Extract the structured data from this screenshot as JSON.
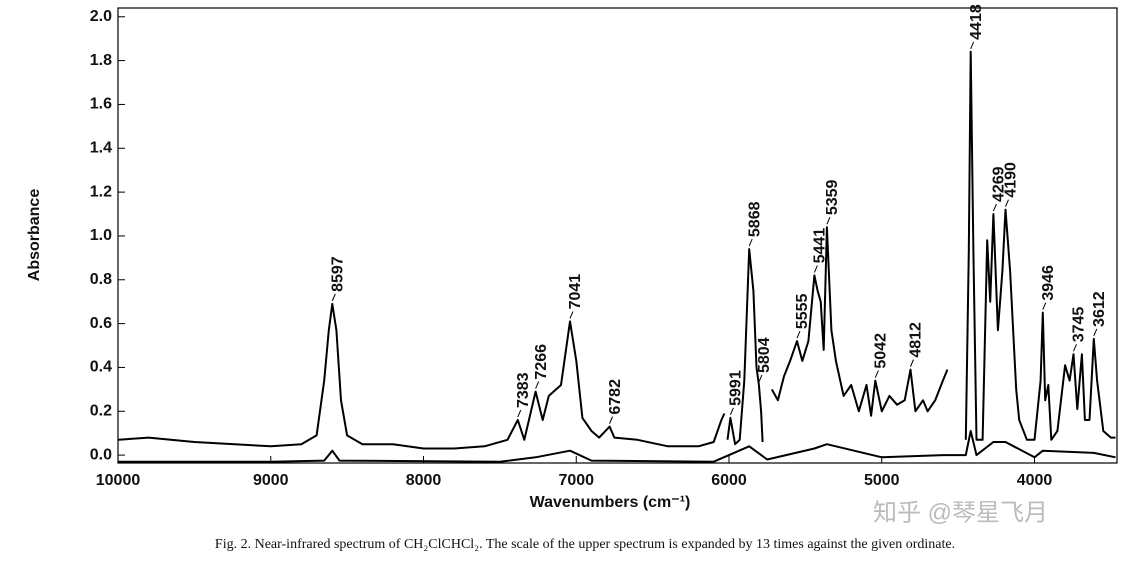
{
  "chart_data": {
    "type": "line",
    "xlabel": "Wavenumbers (cm⁻¹)",
    "ylabel": "Absorbance",
    "caption": "Fig. 2.   Near-infrared spectrum of CH₂ClCHCl₂. The scale of the upper spectrum is expanded by 13 times against the given ordinate.",
    "watermark": "知乎 @琴星飞月",
    "xlim": [
      10000,
      3460
    ],
    "ylim": [
      -0.036,
      2.04
    ],
    "xticks": [
      10000,
      9000,
      8000,
      7000,
      6000,
      5000,
      4000
    ],
    "yticks": [
      {
        "value": 0,
        "label": "0.0"
      },
      {
        "value": 0.2,
        "label": "0.2"
      },
      {
        "value": 0.4,
        "label": "0.4"
      },
      {
        "value": 0.6,
        "label": "0.6"
      },
      {
        "value": 0.8,
        "label": "0.8"
      },
      {
        "value": 1,
        "label": "1.0"
      },
      {
        "value": 1.2,
        "label": "1.2"
      },
      {
        "value": 1.4,
        "label": "1.4"
      },
      {
        "value": 1.6,
        "label": "1.6"
      },
      {
        "value": 1.8,
        "label": "1.8"
      },
      {
        "value": 2,
        "label": "2.0"
      }
    ],
    "series": [
      {
        "color": "#000000",
        "x": [
          10000,
          9800,
          9500,
          9000,
          8800,
          8700,
          8650,
          8620,
          8597,
          8570,
          8540,
          8500,
          8400,
          8200,
          8000,
          7800,
          7600,
          7450,
          7383,
          7340,
          7266,
          7220,
          7180,
          7100,
          7041,
          7000,
          6960,
          6900,
          6850,
          6782,
          6750,
          6600,
          6400,
          6200,
          6100,
          6050,
          6030,
          6020,
          6010,
          5991,
          5960,
          5930,
          5900,
          5868,
          5840,
          5820,
          5804,
          5790,
          5780,
          5750,
          5720,
          5680,
          5640,
          5600,
          5555,
          5520,
          5480,
          5441,
          5420,
          5400,
          5380,
          5359,
          5330,
          5300,
          5250,
          5200,
          5150,
          5100,
          5070,
          5042,
          5000,
          4950,
          4900,
          4850,
          4812,
          4780,
          4730,
          4700,
          4650,
          4600,
          4570,
          4500,
          4450,
          4430,
          4418,
          4400,
          4380,
          4340,
          4310,
          4290,
          4269,
          4240,
          4210,
          4190,
          4160,
          4120,
          4100,
          4050,
          4000,
          3960,
          3946,
          3930,
          3910,
          3890,
          3850,
          3800,
          3770,
          3745,
          3720,
          3690,
          3670,
          3640,
          3612,
          3590,
          3550,
          3500,
          3470
        ],
        "values": [
          0.07,
          0.08,
          0.06,
          0.04,
          0.05,
          0.09,
          0.34,
          0.57,
          0.69,
          0.57,
          0.25,
          0.09,
          0.05,
          0.05,
          0.03,
          0.03,
          0.04,
          0.07,
          0.16,
          0.07,
          0.29,
          0.16,
          0.27,
          0.32,
          0.61,
          0.43,
          0.17,
          0.11,
          0.08,
          0.13,
          0.08,
          0.07,
          0.04,
          0.04,
          0.06,
          0.16,
          0.19,
          null,
          0.07,
          0.17,
          0.05,
          0.07,
          0.34,
          0.94,
          0.75,
          0.4,
          0.32,
          0.2,
          0.06,
          null,
          0.3,
          0.25,
          0.36,
          0.43,
          0.52,
          0.43,
          0.52,
          0.82,
          0.75,
          0.7,
          0.48,
          1.04,
          0.57,
          0.43,
          0.27,
          0.32,
          0.2,
          0.32,
          0.18,
          0.34,
          0.2,
          0.27,
          0.23,
          0.25,
          0.39,
          0.2,
          0.25,
          0.2,
          0.25,
          0.34,
          0.39,
          null,
          0.07,
          0.93,
          1.84,
          0.93,
          0.07,
          0.07,
          0.98,
          0.7,
          1.1,
          0.57,
          0.84,
          1.12,
          0.84,
          0.3,
          0.16,
          0.07,
          0.07,
          0.34,
          0.65,
          0.25,
          0.32,
          0.07,
          0.11,
          0.41,
          0.34,
          0.46,
          0.21,
          0.46,
          0.16,
          0.16,
          0.53,
          0.34,
          0.11,
          0.08,
          0.08
        ]
      },
      {
        "color": "#000000",
        "x": [
          10000,
          9000,
          8650,
          8597,
          8550,
          7500,
          7266,
          7041,
          6900,
          6100,
          5868,
          5750,
          5441,
          5359,
          5000,
          4600,
          4450,
          4418,
          4380,
          4269,
          4190,
          4000,
          3946,
          3612,
          3470
        ],
        "values": [
          -0.03,
          -0.03,
          -0.025,
          0.02,
          -0.025,
          -0.03,
          -0.01,
          0.02,
          -0.025,
          -0.03,
          0.04,
          -0.02,
          0.03,
          0.05,
          -0.01,
          0.0,
          0.0,
          0.11,
          0.0,
          0.06,
          0.06,
          -0.01,
          0.02,
          0.01,
          -0.01
        ]
      }
    ],
    "peaks": [
      {
        "x": 8597,
        "y": 0.69
      },
      {
        "x": 7383,
        "y": 0.16
      },
      {
        "x": 7266,
        "y": 0.29
      },
      {
        "x": 7041,
        "y": 0.61
      },
      {
        "x": 6782,
        "y": 0.13
      },
      {
        "x": 5991,
        "y": 0.17
      },
      {
        "x": 5868,
        "y": 0.94
      },
      {
        "x": 5804,
        "y": 0.32
      },
      {
        "x": 5555,
        "y": 0.52
      },
      {
        "x": 5441,
        "y": 0.82
      },
      {
        "x": 5359,
        "y": 1.04
      },
      {
        "x": 5042,
        "y": 0.34
      },
      {
        "x": 4812,
        "y": 0.39
      },
      {
        "x": 4418,
        "y": 1.84
      },
      {
        "x": 4269,
        "y": 1.1
      },
      {
        "x": 4190,
        "y": 1.12
      },
      {
        "x": 3946,
        "y": 0.65
      },
      {
        "x": 3745,
        "y": 0.46
      },
      {
        "x": 3612,
        "y": 0.53
      }
    ]
  }
}
